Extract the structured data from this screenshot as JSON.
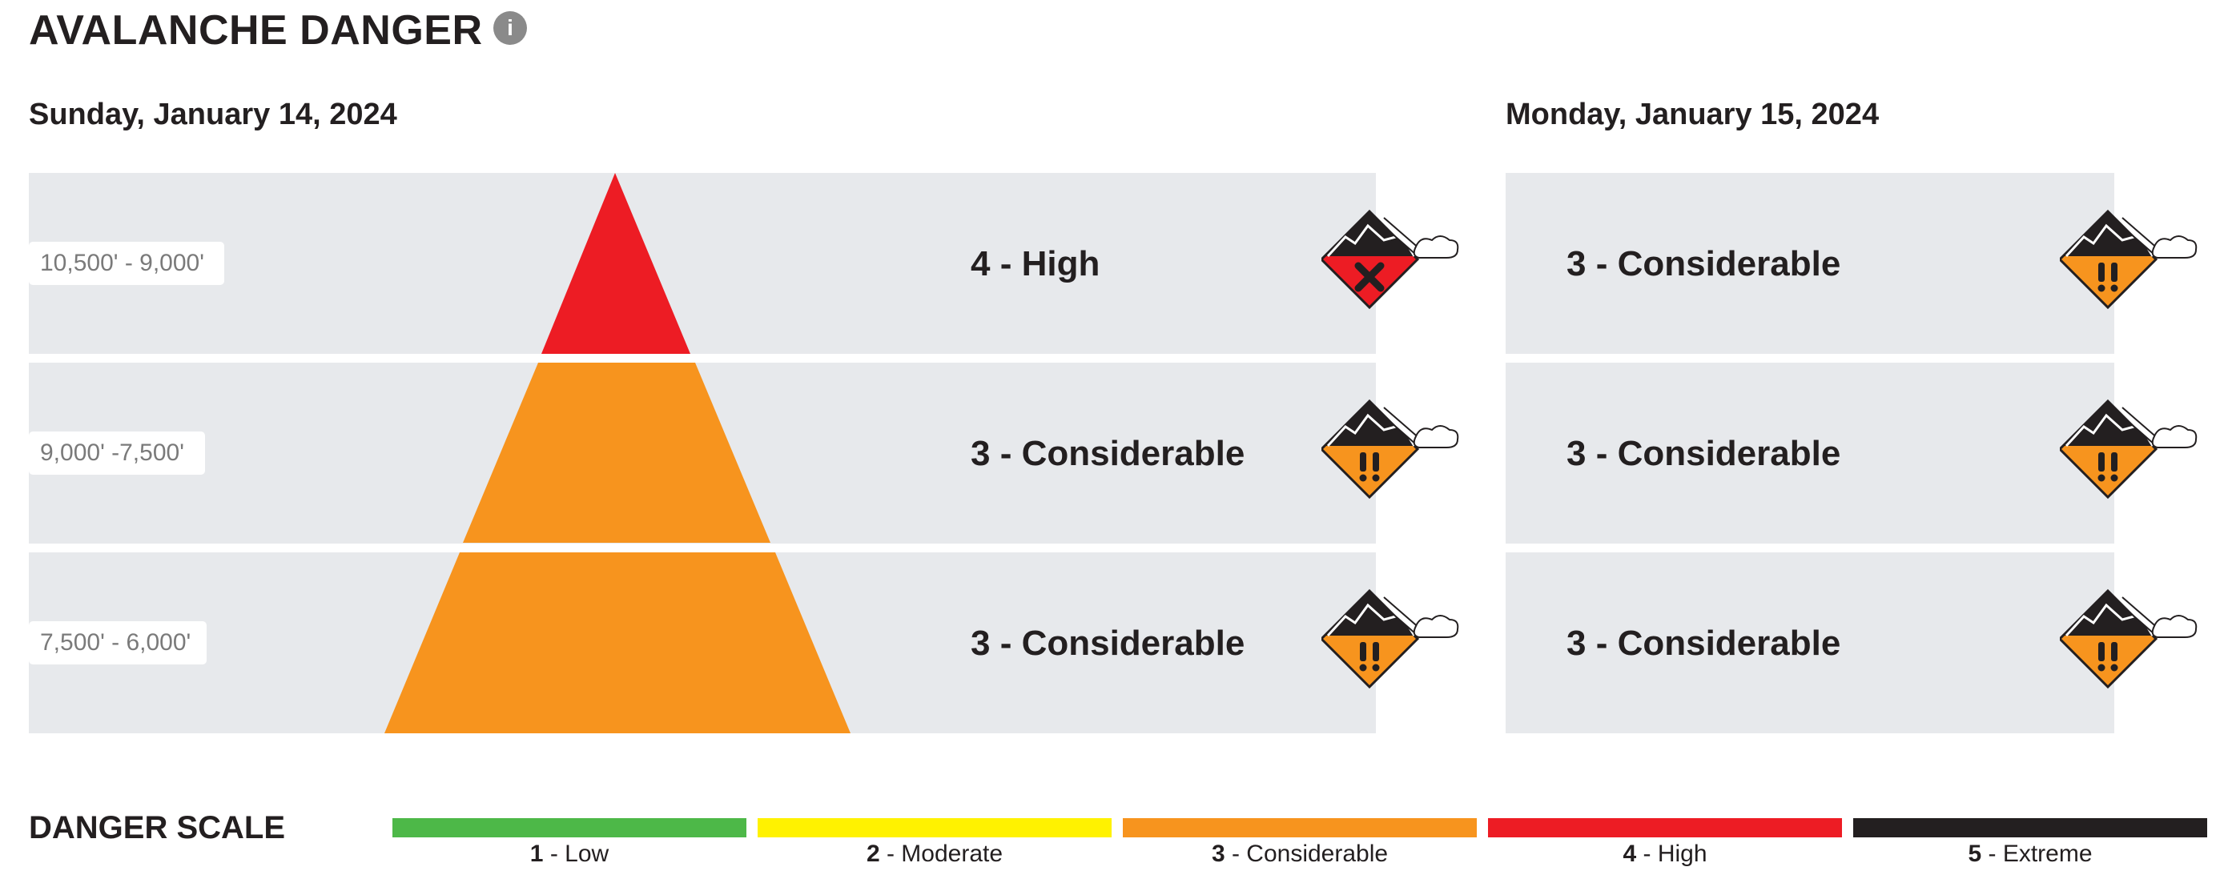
{
  "header": {
    "title": "AVALANCHE DANGER",
    "info_icon": "i"
  },
  "days": [
    {
      "date": "Sunday, January 14, 2024",
      "bands": [
        {
          "elevation": "10,500' - 9,000'",
          "rating": "4 - High",
          "level": 4,
          "icon": "high-danger-icon"
        },
        {
          "elevation": "9,000' -7,500'",
          "rating": "3 - Considerable",
          "level": 3,
          "icon": "considerable-danger-icon"
        },
        {
          "elevation": "7,500' - 6,000'",
          "rating": "3 - Considerable",
          "level": 3,
          "icon": "considerable-danger-icon"
        }
      ]
    },
    {
      "date": "Monday, January 15, 2024",
      "bands": [
        {
          "rating": "3 - Considerable",
          "level": 3,
          "icon": "considerable-danger-icon"
        },
        {
          "rating": "3 - Considerable",
          "level": 3,
          "icon": "considerable-danger-icon"
        },
        {
          "rating": "3 - Considerable",
          "level": 3,
          "icon": "considerable-danger-icon"
        }
      ]
    }
  ],
  "danger_scale": {
    "title": "DANGER SCALE",
    "levels": [
      {
        "number": "1",
        "label": " - Low",
        "color": "#4db848"
      },
      {
        "number": "2",
        "label": " - Moderate",
        "color": "#fff200"
      },
      {
        "number": "3",
        "label": " - Considerable",
        "color": "#f7941e"
      },
      {
        "number": "4",
        "label": " - High",
        "color": "#ed1c24"
      },
      {
        "number": "5",
        "label": " - Extreme",
        "color": "#231f20"
      }
    ]
  }
}
